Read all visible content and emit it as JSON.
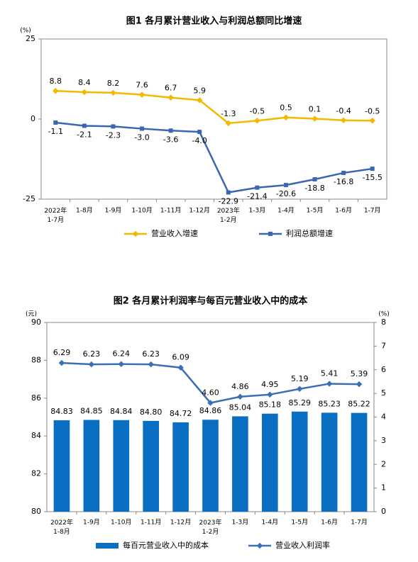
{
  "chart_data": [
    {
      "type": "line",
      "title": "图1  各月累计营业收入与利润总额同比增速",
      "y_label": "(%)",
      "categories": [
        "2022年\n1-7月",
        "1-8月",
        "1-9月",
        "1-10月",
        "1-11月",
        "1-12月",
        "2023年\n1-2月",
        "1-3月",
        "1-4月",
        "1-5月",
        "1-6月",
        "1-7月"
      ],
      "series": [
        {
          "name": "营业收入增速",
          "color": "#f5b800",
          "values": [
            8.8,
            8.4,
            8.2,
            7.6,
            6.7,
            5.9,
            -1.3,
            -0.5,
            0.5,
            0.1,
            -0.4,
            -0.5
          ]
        },
        {
          "name": "利润总额增速",
          "color": "#3b66b0",
          "values": [
            -1.1,
            -2.1,
            -2.3,
            -3.0,
            -3.6,
            -4.0,
            -22.9,
            -21.4,
            -20.6,
            -18.8,
            -16.8,
            -15.5
          ],
          "value_labels": [
            "-1.1",
            "-2.1",
            "-2.3",
            "-3.0",
            "-3.6",
            "-4.0",
            "-22.9",
            "-21.4",
            "-20.6",
            "-18.8",
            "-16.8",
            "-15.5"
          ]
        }
      ],
      "ylim": [
        -25,
        25
      ],
      "yticks": [
        -25,
        0,
        25
      ]
    },
    {
      "type": "bar",
      "title": "图2  各月累计利润率与每百元营业收入中的成本",
      "y_label": "(元)",
      "y2_label": "(%)",
      "categories": [
        "2022年\n1-8月",
        "1-9月",
        "1-10月",
        "1-11月",
        "1-12月",
        "2023年\n1-2月",
        "1-3月",
        "1-4月",
        "1-5月",
        "1-6月",
        "1-7月"
      ],
      "series": [
        {
          "name": "每百元营业收入中的成本",
          "type": "bar",
          "color": "#0a6fc2",
          "values": [
            84.83,
            84.85,
            84.84,
            84.8,
            84.72,
            84.86,
            85.04,
            85.18,
            85.29,
            85.23,
            85.22
          ],
          "value_labels": [
            "84.83",
            "84.85",
            "84.84",
            "84.80",
            "84.72",
            "84.86",
            "85.04",
            "85.18",
            "85.29",
            "85.23",
            "85.22"
          ]
        },
        {
          "name": "营业收入利润率",
          "type": "line",
          "axis": "y2",
          "color": "#3b6fb6",
          "values": [
            6.29,
            6.23,
            6.24,
            6.23,
            6.09,
            4.6,
            4.86,
            4.95,
            5.19,
            5.41,
            5.39
          ],
          "value_labels": [
            "6.29",
            "6.23",
            "6.24",
            "6.23",
            "6.09",
            "4.60",
            "4.86",
            "4.95",
            "5.19",
            "5.41",
            "5.39"
          ]
        }
      ],
      "ylim": [
        80,
        90
      ],
      "yticks": [
        80,
        82,
        84,
        86,
        88,
        90
      ],
      "y2lim": [
        0,
        8
      ],
      "y2ticks": [
        0,
        1,
        2,
        3,
        4,
        5,
        6,
        7,
        8
      ]
    }
  ]
}
